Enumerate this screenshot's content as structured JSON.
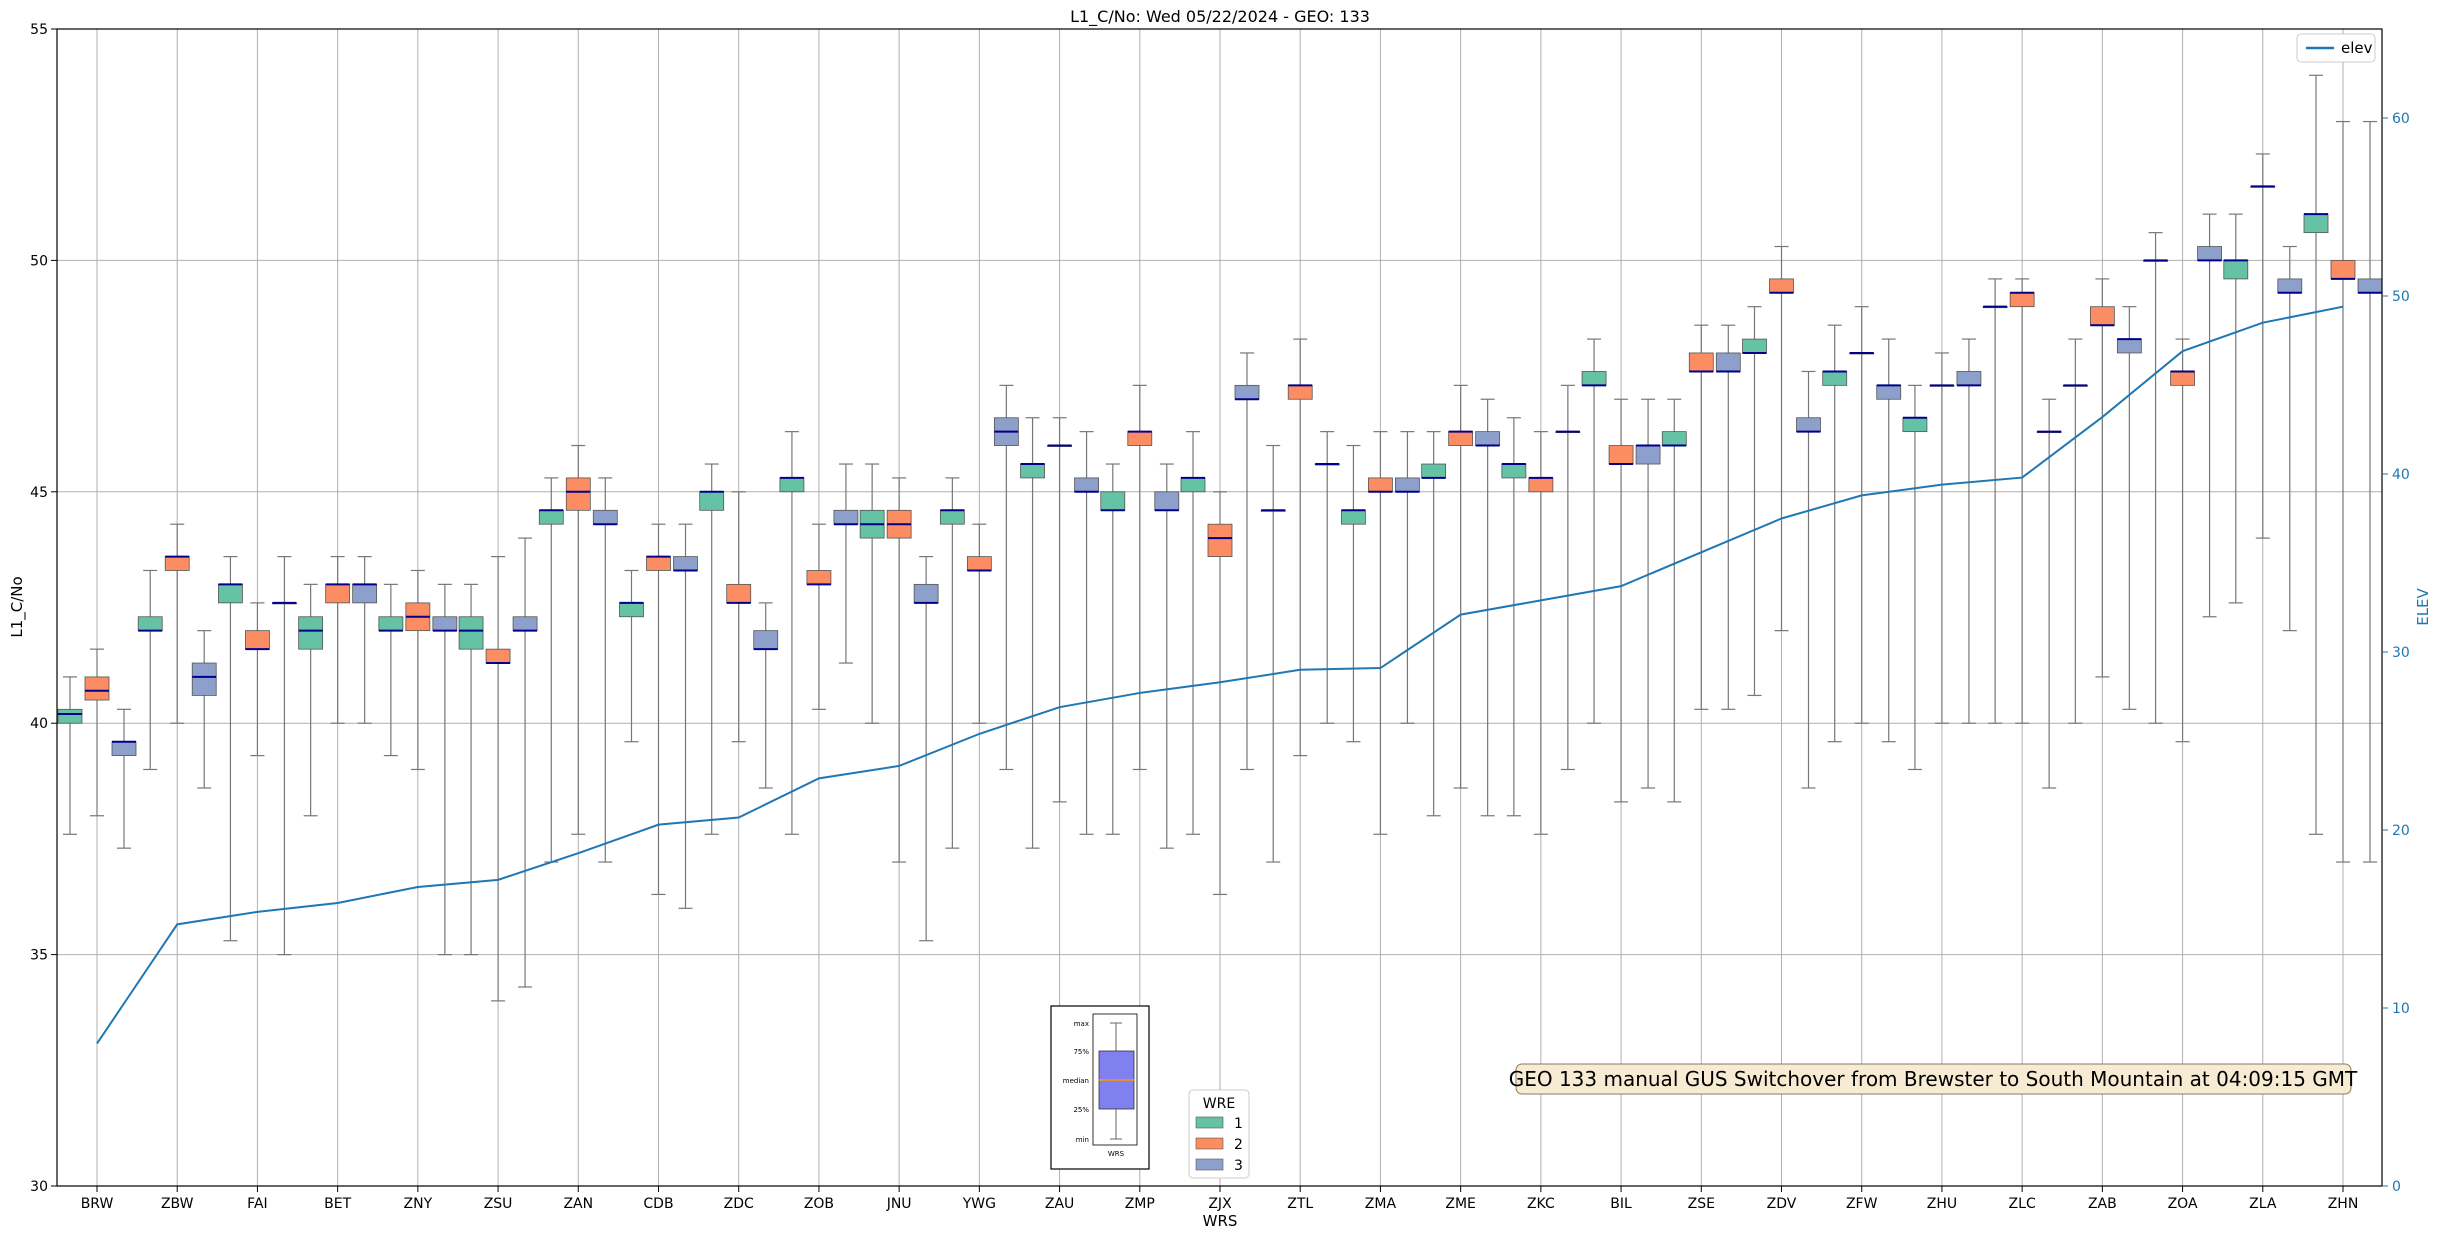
{
  "chart_data": {
    "type": "boxplot",
    "title": "L1_C/No: Wed 05/22/2024 - GEO: 133",
    "xlabel": "WRS",
    "ylabel": "L1_C/No",
    "y2label": "ELEV",
    "ylim": [
      30,
      55
    ],
    "y2lim": [
      0,
      65
    ],
    "yticks": [
      30,
      35,
      40,
      45,
      50,
      55
    ],
    "y2ticks": [
      0,
      10,
      20,
      30,
      40,
      50,
      60
    ],
    "grid": true,
    "categories": [
      "BRW",
      "ZBW",
      "FAI",
      "BET",
      "ZNY",
      "ZSU",
      "ZAN",
      "CDB",
      "ZDC",
      "ZOB",
      "JNU",
      "YWG",
      "ZAU",
      "ZMP",
      "ZJX",
      "ZTL",
      "ZMA",
      "ZME",
      "ZKC",
      "BIL",
      "ZSE",
      "ZDV",
      "ZFW",
      "ZHU",
      "ZLC",
      "ZAB",
      "ZOA",
      "ZLA",
      "ZHN"
    ],
    "series": [
      {
        "name": "1",
        "color": "#66c2a5",
        "boxes": [
          [
            37.6,
            40.0,
            40.2,
            40.3,
            41.0
          ],
          [
            39.0,
            42.0,
            42.0,
            42.3,
            43.3
          ],
          [
            35.3,
            42.6,
            43.0,
            43.0,
            43.6
          ],
          [
            38.0,
            41.6,
            42.0,
            42.3,
            43.0
          ],
          [
            39.3,
            42.0,
            42.0,
            42.3,
            43.0
          ],
          [
            35.0,
            41.6,
            42.0,
            42.3,
            43.0
          ],
          [
            37.0,
            44.3,
            44.6,
            44.6,
            45.3
          ],
          [
            39.6,
            42.3,
            42.6,
            42.6,
            43.3
          ],
          [
            37.6,
            44.6,
            45.0,
            45.0,
            45.6
          ],
          [
            37.6,
            45.0,
            45.3,
            45.3,
            46.3
          ],
          [
            40.0,
            44.0,
            44.3,
            44.6,
            45.6
          ],
          [
            37.3,
            44.3,
            44.6,
            44.6,
            45.3
          ],
          [
            37.3,
            45.3,
            45.6,
            45.6,
            46.6
          ],
          [
            37.6,
            44.6,
            44.6,
            45.0,
            45.6
          ],
          [
            37.6,
            45.0,
            45.3,
            45.3,
            46.3
          ],
          [
            37.0,
            44.6,
            44.6,
            44.6,
            46.0
          ],
          [
            39.6,
            44.3,
            44.6,
            44.6,
            46.0
          ],
          [
            38.0,
            45.3,
            45.3,
            45.6,
            46.3
          ],
          [
            38.0,
            45.3,
            45.6,
            45.6,
            46.6
          ],
          [
            40.0,
            47.3,
            47.3,
            47.6,
            48.3
          ],
          [
            38.3,
            46.0,
            46.0,
            46.3,
            47.0
          ],
          [
            40.6,
            48.0,
            48.0,
            48.3,
            49.0
          ],
          [
            39.6,
            47.3,
            47.6,
            47.6,
            48.6
          ],
          [
            39.0,
            46.3,
            46.6,
            46.6,
            47.3
          ],
          [
            40.0,
            49.0,
            49.0,
            49.0,
            49.6
          ],
          [
            40.0,
            47.3,
            47.3,
            47.3,
            48.3
          ],
          [
            40.0,
            50.0,
            50.0,
            50.0,
            50.6
          ],
          [
            42.6,
            49.6,
            50.0,
            50.0,
            51.0
          ],
          [
            37.6,
            50.6,
            51.0,
            51.0,
            54.0
          ]
        ]
      },
      {
        "name": "2",
        "color": "#fc8d62",
        "boxes": [
          [
            38.0,
            40.5,
            40.7,
            41.0,
            41.6
          ],
          [
            40.0,
            43.3,
            43.6,
            43.6,
            44.3
          ],
          [
            39.3,
            41.6,
            41.6,
            42.0,
            42.6
          ],
          [
            40.0,
            42.6,
            43.0,
            43.0,
            43.6
          ],
          [
            39.0,
            42.0,
            42.3,
            42.6,
            43.3
          ],
          [
            34.0,
            41.3,
            41.3,
            41.6,
            43.6
          ],
          [
            37.6,
            44.6,
            45.0,
            45.3,
            46.0
          ],
          [
            36.3,
            43.3,
            43.6,
            43.6,
            44.3
          ],
          [
            39.6,
            42.6,
            42.6,
            43.0,
            45.0
          ],
          [
            40.3,
            43.0,
            43.0,
            43.3,
            44.3
          ],
          [
            37.0,
            44.0,
            44.3,
            44.6,
            45.3
          ],
          [
            40.0,
            43.3,
            43.3,
            43.6,
            44.3
          ],
          [
            38.3,
            46.0,
            46.0,
            46.0,
            46.6
          ],
          [
            39.0,
            46.0,
            46.3,
            46.3,
            47.3
          ],
          [
            36.3,
            43.6,
            44.0,
            44.3,
            45.0
          ],
          [
            39.3,
            47.0,
            47.3,
            47.3,
            48.3
          ],
          [
            37.6,
            45.0,
            45.0,
            45.3,
            46.3
          ],
          [
            38.6,
            46.0,
            46.3,
            46.3,
            47.3
          ],
          [
            37.6,
            45.0,
            45.3,
            45.3,
            46.3
          ],
          [
            38.3,
            45.6,
            45.6,
            46.0,
            47.0
          ],
          [
            40.3,
            47.6,
            47.6,
            48.0,
            48.6
          ],
          [
            42.0,
            49.3,
            49.3,
            49.6,
            50.3
          ],
          [
            40.0,
            48.0,
            48.0,
            48.0,
            49.0
          ],
          [
            40.0,
            47.3,
            47.3,
            47.3,
            48.0
          ],
          [
            40.0,
            49.0,
            49.3,
            49.3,
            49.6
          ],
          [
            41.0,
            48.6,
            48.6,
            49.0,
            49.6
          ],
          [
            39.6,
            47.3,
            47.6,
            47.6,
            48.3
          ],
          [
            44.0,
            51.6,
            51.6,
            51.6,
            52.3
          ],
          [
            37.0,
            49.6,
            49.6,
            50.0,
            53.0
          ]
        ]
      },
      {
        "name": "3",
        "color": "#8da0cb",
        "boxes": [
          [
            37.3,
            39.3,
            39.6,
            39.6,
            40.3
          ],
          [
            38.6,
            40.6,
            41.0,
            41.3,
            42.0
          ],
          [
            35.0,
            42.6,
            42.6,
            42.6,
            43.6
          ],
          [
            40.0,
            42.6,
            43.0,
            43.0,
            43.6
          ],
          [
            35.0,
            42.0,
            42.0,
            42.3,
            43.0
          ],
          [
            34.3,
            42.0,
            42.0,
            42.3,
            44.0
          ],
          [
            37.0,
            44.3,
            44.3,
            44.6,
            45.3
          ],
          [
            36.0,
            43.3,
            43.3,
            43.6,
            44.3
          ],
          [
            38.6,
            41.6,
            41.6,
            42.0,
            42.6
          ],
          [
            41.3,
            44.3,
            44.3,
            44.6,
            45.6
          ],
          [
            35.3,
            42.6,
            42.6,
            43.0,
            43.6
          ],
          [
            39.0,
            46.0,
            46.3,
            46.6,
            47.3
          ],
          [
            37.6,
            45.0,
            45.0,
            45.3,
            46.3
          ],
          [
            37.3,
            44.6,
            44.6,
            45.0,
            45.6
          ],
          [
            39.0,
            47.0,
            47.0,
            47.3,
            48.0
          ],
          [
            40.0,
            45.6,
            45.6,
            45.6,
            46.3
          ],
          [
            40.0,
            45.0,
            45.0,
            45.3,
            46.3
          ],
          [
            38.0,
            46.0,
            46.0,
            46.3,
            47.0
          ],
          [
            39.0,
            46.3,
            46.3,
            46.3,
            47.3
          ],
          [
            38.6,
            45.6,
            46.0,
            46.0,
            47.0
          ],
          [
            40.3,
            47.6,
            47.6,
            48.0,
            48.6
          ],
          [
            38.6,
            46.3,
            46.3,
            46.6,
            47.6
          ],
          [
            39.6,
            47.0,
            47.3,
            47.3,
            48.3
          ],
          [
            40.0,
            47.3,
            47.3,
            47.6,
            48.3
          ],
          [
            38.6,
            46.3,
            46.3,
            46.3,
            47.0
          ],
          [
            40.3,
            48.0,
            48.3,
            48.3,
            49.0
          ],
          [
            42.3,
            50.0,
            50.0,
            50.3,
            51.0
          ],
          [
            42.0,
            49.3,
            49.3,
            49.6,
            50.3
          ],
          [
            37.0,
            49.3,
            49.3,
            49.6,
            53.0
          ]
        ]
      }
    ],
    "elev": {
      "name": "elev",
      "color": "#1f77b4",
      "values": [
        8,
        14.7,
        15.4,
        15.9,
        16.8,
        17.2,
        18.7,
        20.3,
        20.7,
        22.9,
        23.6,
        25.4,
        26.9,
        27.7,
        28.3,
        29.0,
        29.1,
        32.1,
        32.9,
        33.7,
        35.6,
        37.5,
        38.8,
        39.4,
        39.8,
        43.2,
        46.9,
        48.5,
        49.4
      ]
    },
    "legend_wre": {
      "title": "WRE",
      "placement": "bottom-center",
      "items": [
        "1",
        "2",
        "3"
      ]
    },
    "legend_elev": {
      "placement": "top-right",
      "items": [
        "elev"
      ]
    },
    "annotation": "GEO 133 manual GUS Switchover from Brewster to South Mountain at 04:09:15 GMT",
    "key_inset": {
      "labels": [
        "max",
        "75%",
        "median",
        "25%",
        "min"
      ],
      "xlabel": "WRS"
    }
  }
}
